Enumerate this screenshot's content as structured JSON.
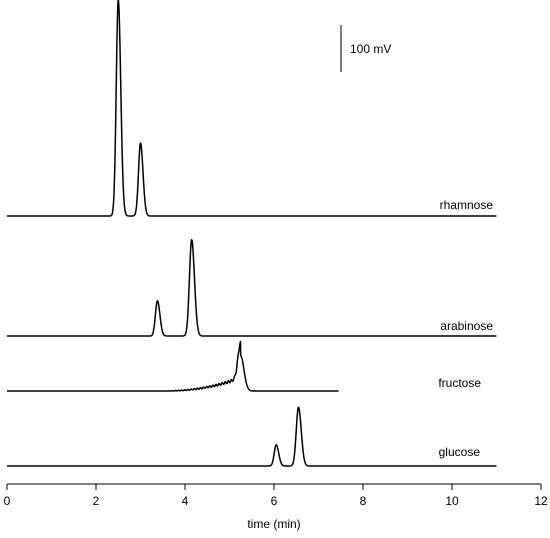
{
  "chart_data": {
    "type": "line",
    "title": "",
    "xlabel": "time (min)",
    "ylabel": "",
    "xlim": [
      0,
      12
    ],
    "xticks": [
      0,
      2,
      4,
      6,
      8,
      10,
      12
    ],
    "grid": false,
    "scale_bar": {
      "label": "100 mV",
      "value_mV": 100
    },
    "series": [
      {
        "name": "rhamnose",
        "baseline_mV": 0,
        "x_range": [
          0,
          11
        ],
        "peaks": [
          {
            "t": 2.5,
            "height_mV": 460,
            "width": 0.045
          },
          {
            "t": 3.0,
            "height_mV": 155,
            "width": 0.045
          }
        ]
      },
      {
        "name": "arabinose",
        "baseline_mV": 0,
        "x_range": [
          0,
          11
        ],
        "peaks": [
          {
            "t": 3.38,
            "height_mV": 75,
            "width": 0.045
          },
          {
            "t": 4.15,
            "height_mV": 205,
            "width": 0.05
          }
        ]
      },
      {
        "name": "fructose",
        "baseline_mV": 0,
        "x_range": [
          0,
          7.45
        ],
        "peaks": [
          {
            "t": 5.25,
            "height_mV": 75,
            "width": 0.06
          }
        ]
      },
      {
        "name": "glucose",
        "baseline_mV": 0,
        "x_range": [
          0,
          11
        ],
        "peaks": [
          {
            "t": 6.05,
            "height_mV": 45,
            "width": 0.045
          },
          {
            "t": 6.55,
            "height_mV": 125,
            "width": 0.05
          }
        ]
      }
    ]
  }
}
